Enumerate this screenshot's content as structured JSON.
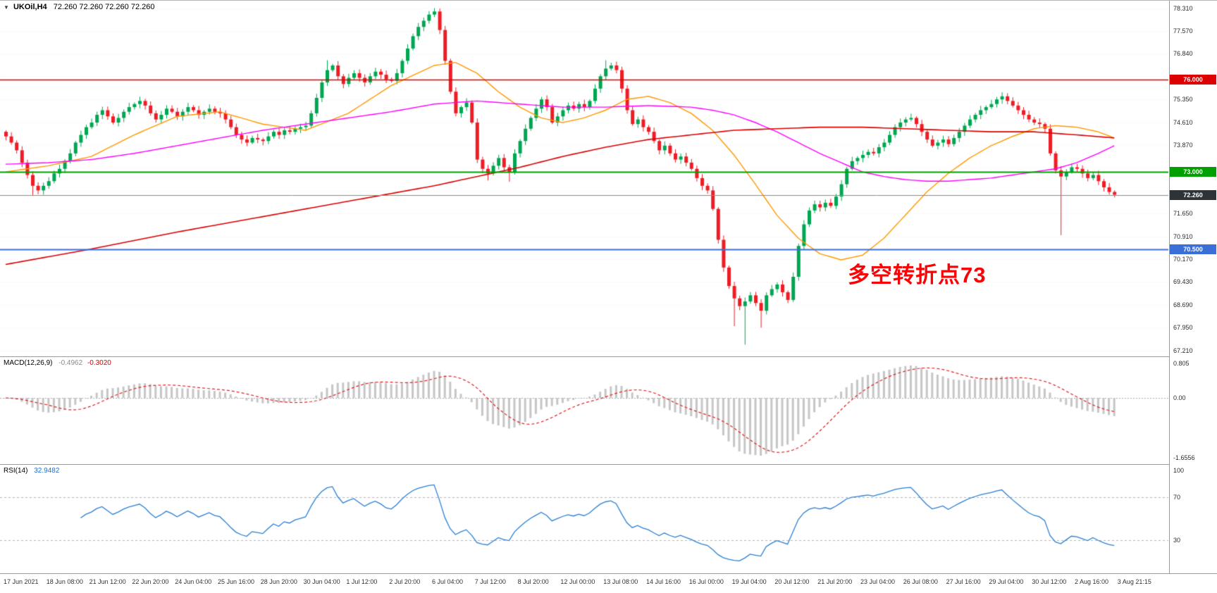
{
  "header": {
    "marker": "▼",
    "symbol": "UKOil,H4",
    "quotes": "72.260 72.260 72.260 72.260"
  },
  "annotation": {
    "text": "多空转折点73",
    "color": "#fb0207"
  },
  "colors": {
    "bull": "#00a651",
    "bear": "#ee1c25",
    "ma_fast": "#ff9900",
    "ma_mid": "#ff00ff",
    "ma_slow": "#dd0000",
    "hline_red": "#dd0000",
    "hline_green": "#00a000",
    "hline_blue": "#3a6fd8",
    "current_line": "#8c8c8c",
    "badge_current_bg": "#2e3338",
    "macd_hist": "#c6c6c6",
    "macd_signal": "#e02020",
    "rsi_line": "#2a7fd4",
    "grid": "#ebebeb",
    "level_dash": "#b5b5b5",
    "separator": "#9a9a9a",
    "axis_text": "#333333"
  },
  "chart_data": [
    {
      "type": "candlestick",
      "symbol": "UKOil",
      "timeframe": "H4",
      "ylim": [
        67.0,
        78.55
      ],
      "closes": [
        74.15,
        73.95,
        73.7,
        73.3,
        72.9,
        72.55,
        72.4,
        72.55,
        72.7,
        72.95,
        73.1,
        73.35,
        73.6,
        73.95,
        74.2,
        74.45,
        74.6,
        74.85,
        75.0,
        74.8,
        74.6,
        74.75,
        74.95,
        75.1,
        75.2,
        75.3,
        75.15,
        74.9,
        74.7,
        74.85,
        75.05,
        74.95,
        74.8,
        74.95,
        75.1,
        75.0,
        74.85,
        74.95,
        75.05,
        74.95,
        74.9,
        74.7,
        74.45,
        74.2,
        74.05,
        73.95,
        74.1,
        74.05,
        74.0,
        74.15,
        74.3,
        74.2,
        74.35,
        74.3,
        74.4,
        74.45,
        74.5,
        74.9,
        75.4,
        75.9,
        76.3,
        76.45,
        76.1,
        75.85,
        76.05,
        76.2,
        76.05,
        75.9,
        76.1,
        76.25,
        76.15,
        76.0,
        75.95,
        76.2,
        76.6,
        77.0,
        77.4,
        77.7,
        77.9,
        78.1,
        78.2,
        77.6,
        76.6,
        75.6,
        74.9,
        75.1,
        75.25,
        74.6,
        73.4,
        73.1,
        72.95,
        73.2,
        73.45,
        73.15,
        73.0,
        73.6,
        74.0,
        74.4,
        74.75,
        75.05,
        75.35,
        75.1,
        74.6,
        74.8,
        75.0,
        75.15,
        75.05,
        75.2,
        75.1,
        75.3,
        75.7,
        76.1,
        76.35,
        76.45,
        76.3,
        75.7,
        75.0,
        74.55,
        74.7,
        74.45,
        74.3,
        74.0,
        73.7,
        73.85,
        73.6,
        73.4,
        73.5,
        73.3,
        73.1,
        72.8,
        72.55,
        72.4,
        71.8,
        70.8,
        69.9,
        69.3,
        68.9,
        68.65,
        68.8,
        69.0,
        68.75,
        68.5,
        69.0,
        69.2,
        69.35,
        69.1,
        68.85,
        69.6,
        70.6,
        71.3,
        71.75,
        71.95,
        71.85,
        72.0,
        71.9,
        72.2,
        72.6,
        73.1,
        73.35,
        73.45,
        73.55,
        73.65,
        73.6,
        73.8,
        73.95,
        74.2,
        74.45,
        74.6,
        74.7,
        74.75,
        74.55,
        74.3,
        74.05,
        73.85,
        73.95,
        74.05,
        73.9,
        74.1,
        74.3,
        74.5,
        74.7,
        74.85,
        75.0,
        75.1,
        75.2,
        75.35,
        75.45,
        75.3,
        75.15,
        75.0,
        74.85,
        74.7,
        74.6,
        74.55,
        74.4,
        73.6,
        73.05,
        72.85,
        73.0,
        73.15,
        73.1,
        72.95,
        72.8,
        72.9,
        72.7,
        72.5,
        72.35,
        72.26
      ],
      "wick_overrides": {
        "5": {
          "low": 72.25
        },
        "60": {
          "high": 76.62
        },
        "80": {
          "high": 78.31
        },
        "90": {
          "low": 72.72
        },
        "94": {
          "low": 72.68
        },
        "112": {
          "high": 76.62
        },
        "136": {
          "low": 68.0
        },
        "138": {
          "low": 67.4
        },
        "141": {
          "low": 67.95
        },
        "197": {
          "low": 70.95
        }
      },
      "bars_per_label": 8,
      "x_labels": [
        "17 Jun 2021",
        "18 Jun 08:00",
        "21 Jun 12:00",
        "22 Jun 20:00",
        "24 Jun 04:00",
        "25 Jun 16:00",
        "28 Jun 20:00",
        "30 Jun 04:00",
        "1 Jul 12:00",
        "2 Jul 20:00",
        "6 Jul 04:00",
        "7 Jul 12:00",
        "8 Jul 20:00",
        "12 Jul 00:00",
        "13 Jul 08:00",
        "14 Jul 16:00",
        "16 Jul 00:00",
        "19 Jul 04:00",
        "20 Jul 12:00",
        "21 Jul 20:00",
        "23 Jul 04:00",
        "26 Jul 08:00",
        "27 Jul 16:00",
        "29 Jul 04:00",
        "30 Jul 12:00",
        "2 Aug 16:00",
        "3 Aug 21:15"
      ],
      "y_ticks": [
        "78.310",
        "77.570",
        "76.840",
        "75.350",
        "74.610",
        "73.870",
        "71.650",
        "70.910",
        "70.170",
        "69.430",
        "68.690",
        "67.950",
        "67.210"
      ],
      "y_tick_values": [
        78.31,
        77.57,
        76.84,
        75.35,
        74.61,
        73.87,
        71.65,
        70.91,
        70.17,
        69.43,
        68.69,
        67.95,
        67.21
      ],
      "grid_levels": [
        78.31,
        77.57,
        76.84,
        76.1,
        75.35,
        74.61,
        73.87,
        73.13,
        72.39,
        71.65,
        70.91,
        70.17,
        69.43,
        68.69,
        67.95,
        67.21
      ],
      "hlines": [
        {
          "value": 76.0,
          "label": "76.000",
          "color_key": "hline_red",
          "width": 1.6,
          "current": false
        },
        {
          "value": 73.0,
          "label": "73.000",
          "color_key": "hline_green",
          "width": 2,
          "current": false
        },
        {
          "value": 70.5,
          "label": "70.500",
          "color_key": "hline_blue",
          "width": 2,
          "current": false
        },
        {
          "value": 72.26,
          "label": "72.260",
          "color_key": "current_line",
          "width": 1,
          "current": true
        }
      ],
      "overlays": [
        {
          "name": "ma-fast",
          "color_key": "ma_fast",
          "points": [
            [
              0,
              73.0
            ],
            [
              8,
              73.2
            ],
            [
              16,
              73.5
            ],
            [
              24,
              74.2
            ],
            [
              32,
              74.8
            ],
            [
              40,
              74.95
            ],
            [
              48,
              74.55
            ],
            [
              56,
              74.35
            ],
            [
              64,
              74.9
            ],
            [
              72,
              75.8
            ],
            [
              80,
              76.45
            ],
            [
              84,
              76.55
            ],
            [
              88,
              76.2
            ],
            [
              92,
              75.6
            ],
            [
              96,
              75.1
            ],
            [
              100,
              74.75
            ],
            [
              104,
              74.6
            ],
            [
              108,
              74.75
            ],
            [
              112,
              75.0
            ],
            [
              116,
              75.35
            ],
            [
              120,
              75.45
            ],
            [
              124,
              75.25
            ],
            [
              128,
              74.9
            ],
            [
              132,
              74.35
            ],
            [
              136,
              73.55
            ],
            [
              140,
              72.6
            ],
            [
              144,
              71.6
            ],
            [
              148,
              70.85
            ],
            [
              152,
              70.35
            ],
            [
              156,
              70.15
            ],
            [
              160,
              70.3
            ],
            [
              164,
              70.85
            ],
            [
              168,
              71.6
            ],
            [
              172,
              72.35
            ],
            [
              176,
              72.95
            ],
            [
              180,
              73.45
            ],
            [
              184,
              73.85
            ],
            [
              188,
              74.15
            ],
            [
              192,
              74.4
            ],
            [
              196,
              74.5
            ],
            [
              200,
              74.45
            ],
            [
              204,
              74.3
            ],
            [
              207,
              74.1
            ]
          ]
        },
        {
          "name": "ma-mid",
          "color_key": "ma_mid",
          "points": [
            [
              0,
              73.25
            ],
            [
              8,
              73.3
            ],
            [
              16,
              73.4
            ],
            [
              24,
              73.6
            ],
            [
              32,
              73.85
            ],
            [
              40,
              74.1
            ],
            [
              48,
              74.35
            ],
            [
              56,
              74.55
            ],
            [
              64,
              74.75
            ],
            [
              72,
              74.95
            ],
            [
              80,
              75.2
            ],
            [
              88,
              75.3
            ],
            [
              96,
              75.2
            ],
            [
              104,
              75.1
            ],
            [
              112,
              75.1
            ],
            [
              120,
              75.15
            ],
            [
              128,
              75.1
            ],
            [
              132,
              75.0
            ],
            [
              136,
              74.85
            ],
            [
              140,
              74.6
            ],
            [
              144,
              74.3
            ],
            [
              148,
              73.95
            ],
            [
              152,
              73.6
            ],
            [
              156,
              73.3
            ],
            [
              160,
              73.0
            ],
            [
              164,
              72.85
            ],
            [
              168,
              72.75
            ],
            [
              172,
              72.7
            ],
            [
              176,
              72.7
            ],
            [
              180,
              72.75
            ],
            [
              184,
              72.8
            ],
            [
              188,
              72.9
            ],
            [
              192,
              73.0
            ],
            [
              196,
              73.1
            ],
            [
              200,
              73.3
            ],
            [
              204,
              73.6
            ],
            [
              207,
              73.85
            ]
          ]
        },
        {
          "name": "ma-slow",
          "color_key": "ma_slow",
          "points": [
            [
              0,
              70.0
            ],
            [
              16,
              70.5
            ],
            [
              32,
              71.05
            ],
            [
              48,
              71.55
            ],
            [
              64,
              72.05
            ],
            [
              80,
              72.55
            ],
            [
              88,
              72.85
            ],
            [
              96,
              73.15
            ],
            [
              104,
              73.5
            ],
            [
              112,
              73.8
            ],
            [
              120,
              74.05
            ],
            [
              128,
              74.2
            ],
            [
              136,
              74.35
            ],
            [
              144,
              74.4
            ],
            [
              152,
              74.45
            ],
            [
              160,
              74.45
            ],
            [
              168,
              74.4
            ],
            [
              176,
              74.35
            ],
            [
              184,
              74.3
            ],
            [
              192,
              74.3
            ],
            [
              200,
              74.2
            ],
            [
              207,
              74.1
            ]
          ]
        }
      ]
    },
    {
      "type": "macd",
      "label": "MACD(12,26,9)",
      "value_main": "-0.4962",
      "value_signal": "-0.3020",
      "params": [
        12,
        26,
        9
      ],
      "derived_from": "closes",
      "y_ticks": [
        "0.805",
        "0.00",
        "-1.6556"
      ]
    },
    {
      "type": "rsi",
      "label": "RSI(14)",
      "value": "32.9482",
      "period": 14,
      "levels": [
        70,
        30
      ],
      "ylim": [
        0,
        100
      ],
      "y_ticks": [
        "100",
        "70",
        "30"
      ]
    }
  ]
}
